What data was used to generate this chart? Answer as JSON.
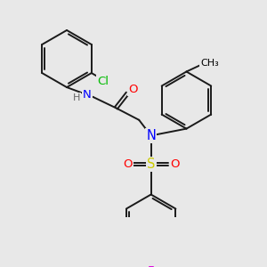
{
  "bg_color": "#e8e8e8",
  "bond_color": "#1a1a1a",
  "bond_width": 1.4,
  "atom_colors": {
    "N": "#0000ff",
    "O": "#ff0000",
    "S": "#cccc00",
    "Cl": "#00bb00",
    "F": "#dd00dd",
    "H": "#666666"
  },
  "font_size": 9.5
}
